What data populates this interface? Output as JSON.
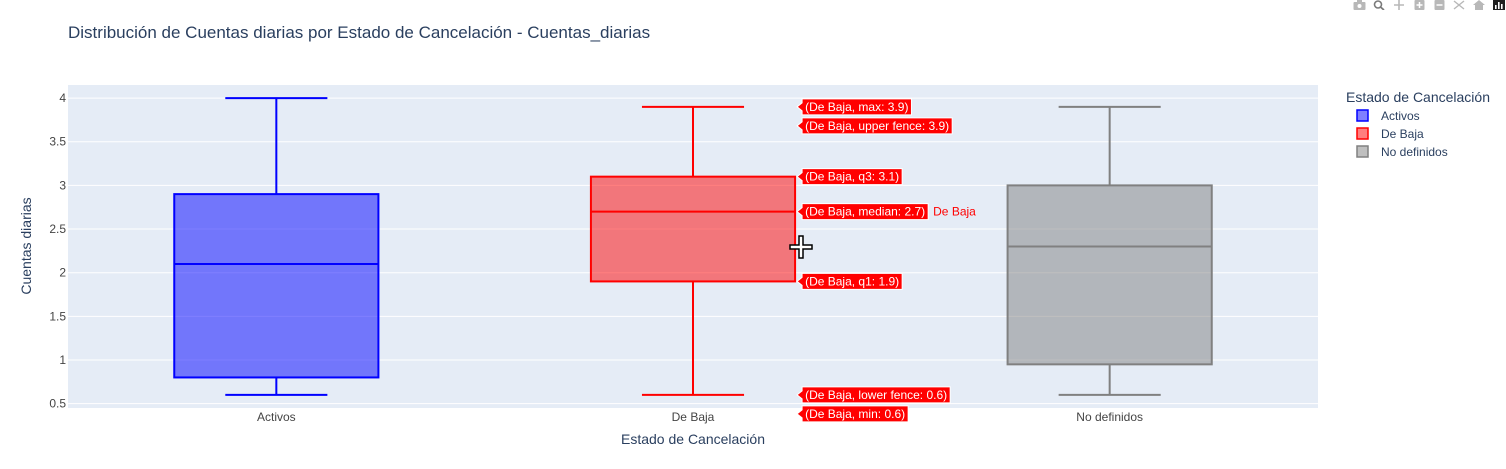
{
  "chart_data": {
    "type": "box",
    "title": "Distribución de Cuentas diarias por Estado de Cancelación - Cuentas_diarias",
    "xlabel": "Estado de Cancelación",
    "ylabel": "Cuentas diarias",
    "ylim": [
      0.45,
      4.15
    ],
    "yticks": [
      0.5,
      1,
      1.5,
      2,
      2.5,
      3,
      3.5,
      4
    ],
    "ytick_labels": [
      "0.5",
      "1",
      "1.5",
      "2",
      "2.5",
      "3",
      "3.5",
      "4"
    ],
    "grid": true,
    "legend": {
      "title": "Estado de Cancelación",
      "placement": "right"
    },
    "categories": [
      "Activos",
      "De Baja",
      "No definidos"
    ],
    "series": [
      {
        "name": "Activos",
        "min": 0.6,
        "lower_fence": 0.6,
        "q1": 0.8,
        "median": 2.1,
        "q3": 2.9,
        "upper_fence": 4.0,
        "max": 4.0,
        "line_color": "#0000ff",
        "fill_color": "rgba(0,0,255,0.5)"
      },
      {
        "name": "De Baja",
        "min": 0.6,
        "lower_fence": 0.6,
        "q1": 1.9,
        "median": 2.7,
        "q3": 3.1,
        "upper_fence": 3.9,
        "max": 3.9,
        "line_color": "#ff0000",
        "fill_color": "rgba(255,0,0,0.5)"
      },
      {
        "name": "No definidos",
        "min": 0.6,
        "lower_fence": 0.6,
        "q1": 0.95,
        "median": 2.3,
        "q3": 3.0,
        "upper_fence": 3.9,
        "max": 3.9,
        "line_color": "#808080",
        "fill_color": "rgba(128,128,128,0.5)"
      }
    ],
    "hover": {
      "category": "De Baja",
      "trace_label": "De Baja",
      "labels": [
        {
          "text": "(De Baja, max: 3.9)",
          "value": 3.9
        },
        {
          "text": "(De Baja, upper fence: 3.9)",
          "value": 3.9
        },
        {
          "text": "(De Baja, q3: 3.1)",
          "value": 3.1
        },
        {
          "text": "(De Baja, median: 2.7)",
          "value": 2.7
        },
        {
          "text": "(De Baja, q1: 1.9)",
          "value": 1.9
        },
        {
          "text": "(De Baja, lower fence: 0.6)",
          "value": 0.6
        },
        {
          "text": "(De Baja, min: 0.6)",
          "value": 0.6
        }
      ]
    }
  },
  "modebar": {
    "icons": [
      "camera-icon",
      "zoom-icon",
      "pan-icon",
      "zoom-in-icon",
      "zoom-out-icon",
      "autoscale-icon",
      "reset-axes-icon",
      "plotly-logo-icon"
    ]
  },
  "colors": {
    "plot_bg": "#e5ecf6",
    "grid": "#ffffff",
    "text": "#2a3f5f",
    "hover_bg": "#ff0000"
  }
}
